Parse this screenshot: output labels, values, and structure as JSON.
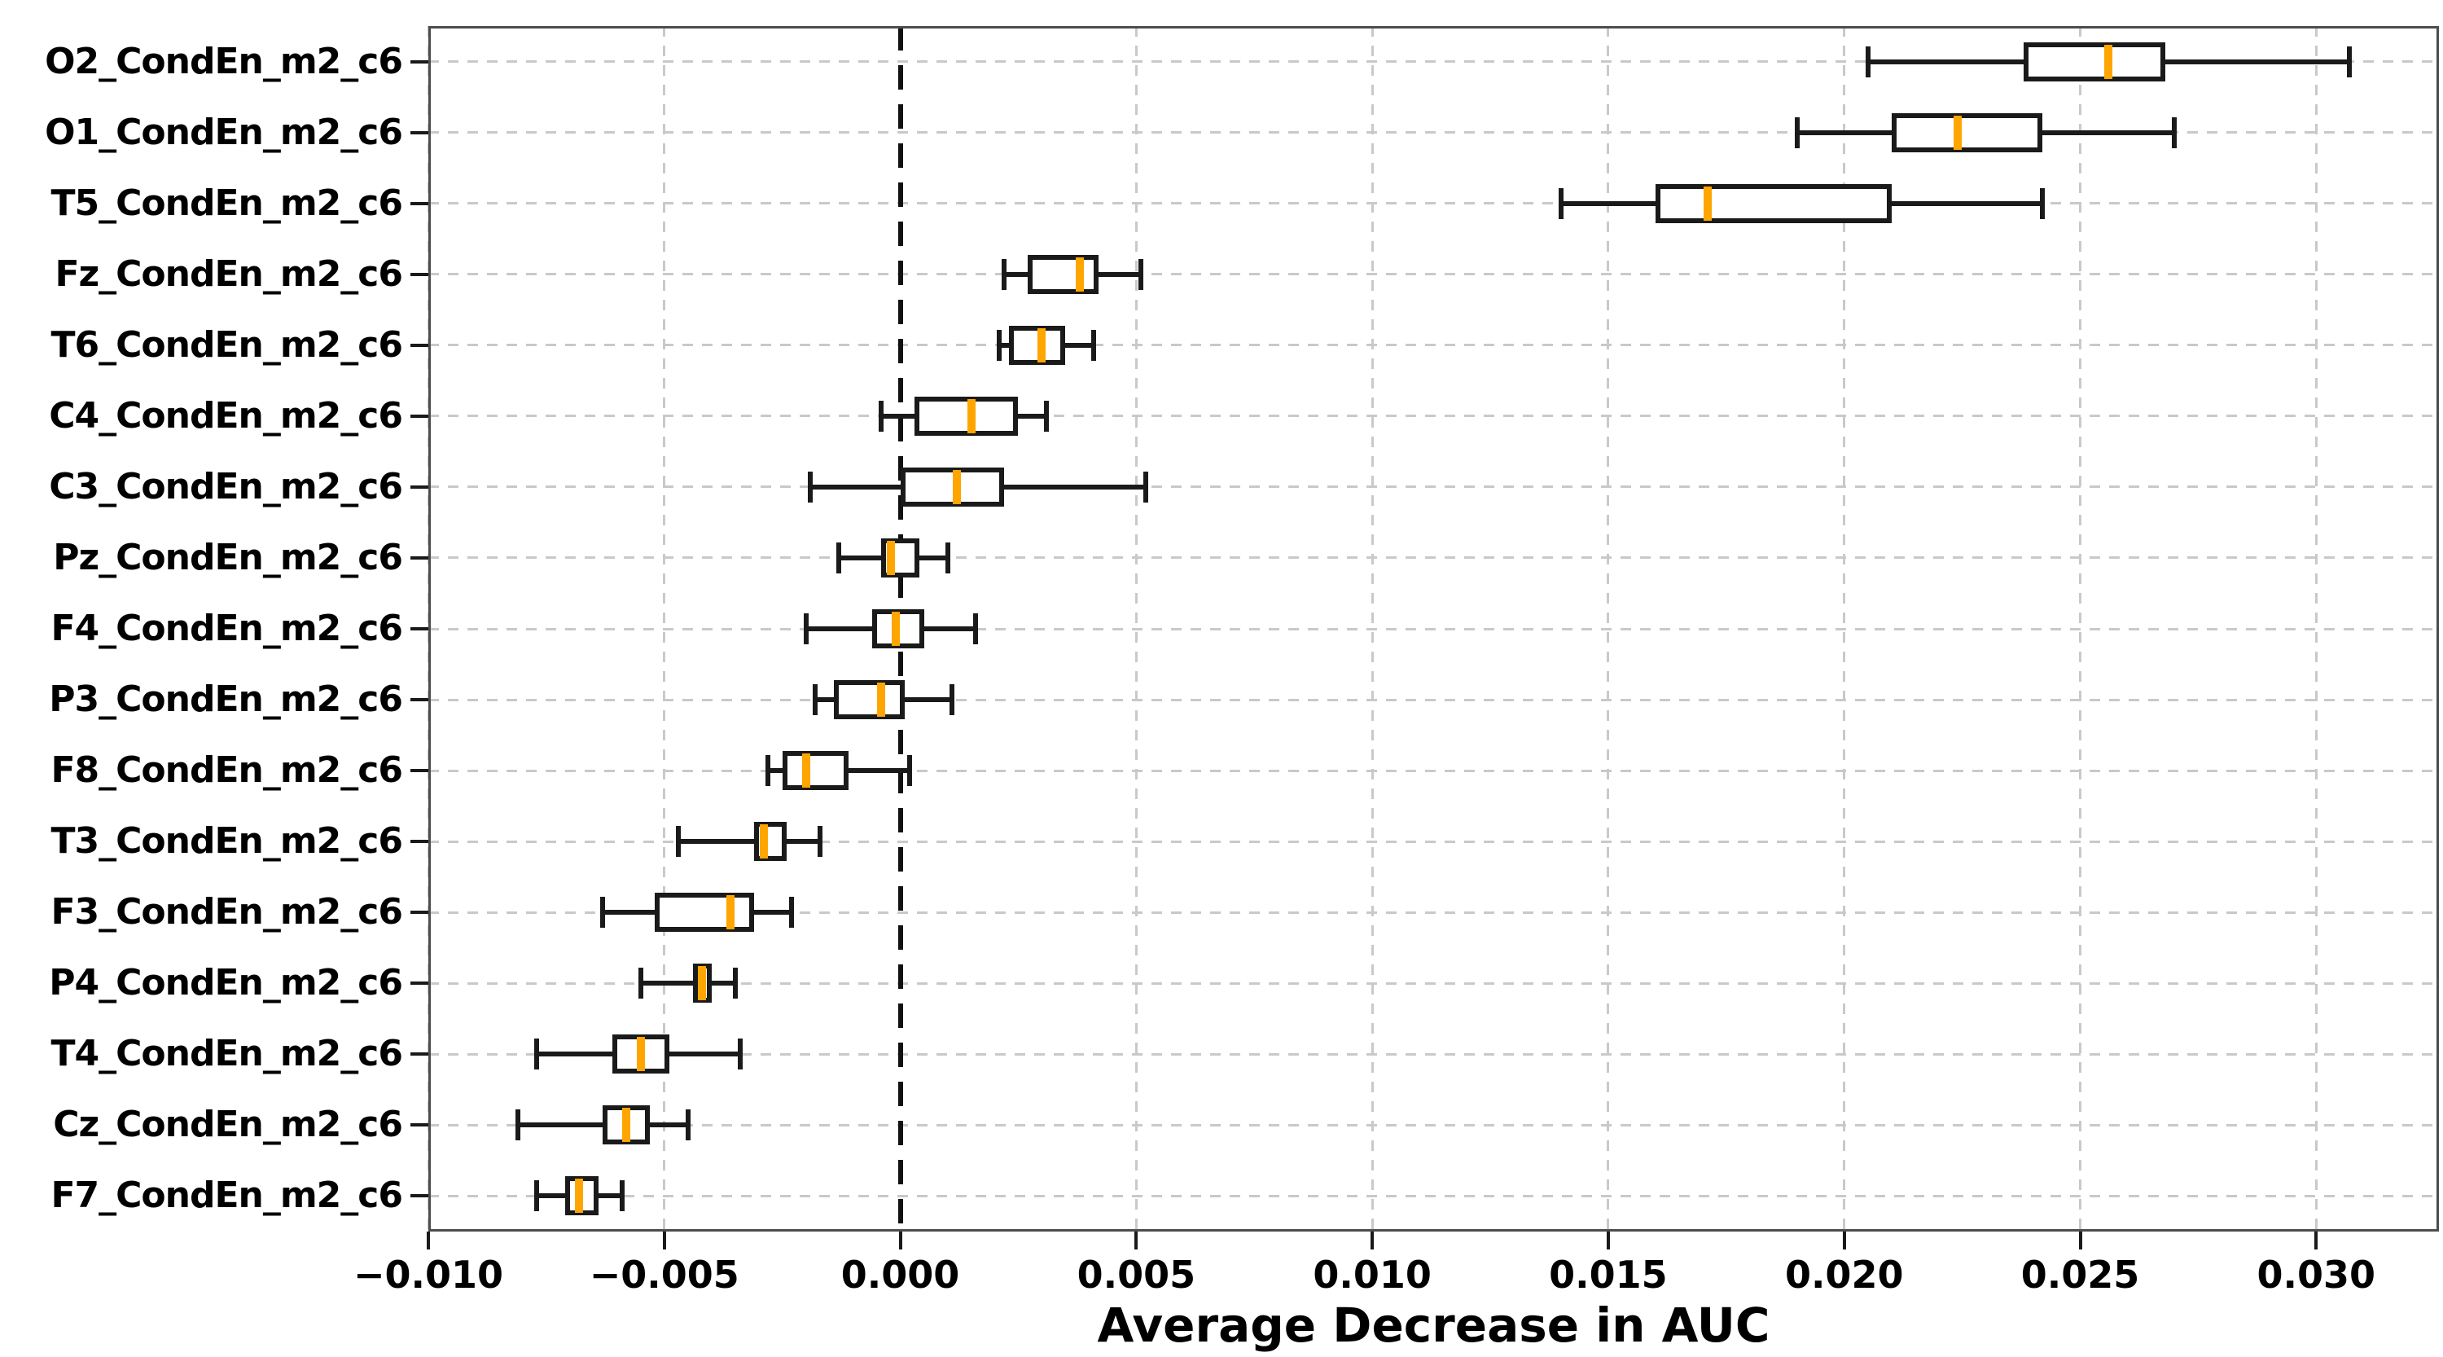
{
  "chart_data": {
    "type": "boxplot",
    "orientation": "horizontal",
    "title": "",
    "xlabel": "Average Decrease in AUC",
    "ylabel": "",
    "xlim": [
      -0.01,
      0.0326
    ],
    "grid": "dashed-both-axes",
    "zero_reference_line": 0.0,
    "colors": {
      "median": "#FFA500",
      "box_edge": "#1a1a1a",
      "gridline": "#c9c9c9",
      "frame": "#4d4d4d",
      "zero_line": "#111111",
      "background": "#ffffff"
    },
    "xticks": [
      -0.01,
      -0.005,
      0.0,
      0.005,
      0.01,
      0.015,
      0.02,
      0.025,
      0.03
    ],
    "xtick_labels": [
      "−0.010",
      "−0.005",
      "0.000",
      "0.005",
      "0.010",
      "0.015",
      "0.020",
      "0.025",
      "0.030"
    ],
    "categories": [
      "O2_CondEn_m2_c6",
      "O1_CondEn_m2_c6",
      "T5_CondEn_m2_c6",
      "Fz_CondEn_m2_c6",
      "T6_CondEn_m2_c6",
      "C4_CondEn_m2_c6",
      "C3_CondEn_m2_c6",
      "Pz_CondEn_m2_c6",
      "F4_CondEn_m2_c6",
      "P3_CondEn_m2_c6",
      "F8_CondEn_m2_c6",
      "T3_CondEn_m2_c6",
      "F3_CondEn_m2_c6",
      "P4_CondEn_m2_c6",
      "T4_CondEn_m2_c6",
      "Cz_CondEn_m2_c6",
      "F7_CondEn_m2_c6"
    ],
    "boxes": [
      {
        "label": "O2_CondEn_m2_c6",
        "whislo": 0.0205,
        "q1": 0.0238,
        "med": 0.0256,
        "q3": 0.0268,
        "whishi": 0.0307
      },
      {
        "label": "O1_CondEn_m2_c6",
        "whislo": 0.019,
        "q1": 0.021,
        "med": 0.0224,
        "q3": 0.0242,
        "whishi": 0.027
      },
      {
        "label": "T5_CondEn_m2_c6",
        "whislo": 0.014,
        "q1": 0.016,
        "med": 0.0171,
        "q3": 0.021,
        "whishi": 0.0242
      },
      {
        "label": "Fz_CondEn_m2_c6",
        "whislo": 0.0022,
        "q1": 0.0027,
        "med": 0.0038,
        "q3": 0.0042,
        "whishi": 0.0051
      },
      {
        "label": "T6_CondEn_m2_c6",
        "whislo": 0.0021,
        "q1": 0.0023,
        "med": 0.003,
        "q3": 0.0035,
        "whishi": 0.0041
      },
      {
        "label": "C4_CondEn_m2_c6",
        "whislo": -0.0004,
        "q1": 0.0003,
        "med": 0.0015,
        "q3": 0.0025,
        "whishi": 0.0031
      },
      {
        "label": "C3_CondEn_m2_c6",
        "whislo": -0.0019,
        "q1": 0.0,
        "med": 0.0012,
        "q3": 0.0022,
        "whishi": 0.0052
      },
      {
        "label": "Pz_CondEn_m2_c6",
        "whislo": -0.0013,
        "q1": -0.0004,
        "med": -0.0002,
        "q3": 0.0004,
        "whishi": 0.001
      },
      {
        "label": "F4_CondEn_m2_c6",
        "whislo": -0.002,
        "q1": -0.0006,
        "med": -0.0001,
        "q3": 0.0005,
        "whishi": 0.0016
      },
      {
        "label": "P3_CondEn_m2_c6",
        "whislo": -0.0018,
        "q1": -0.0014,
        "med": -0.0004,
        "q3": 0.0001,
        "whishi": 0.0011
      },
      {
        "label": "F8_CondEn_m2_c6",
        "whislo": -0.0028,
        "q1": -0.0025,
        "med": -0.002,
        "q3": -0.0011,
        "whishi": 0.0002
      },
      {
        "label": "T3_CondEn_m2_c6",
        "whislo": -0.0047,
        "q1": -0.0031,
        "med": -0.0029,
        "q3": -0.0024,
        "whishi": -0.0017
      },
      {
        "label": "F3_CondEn_m2_c6",
        "whislo": -0.0063,
        "q1": -0.0052,
        "med": -0.0036,
        "q3": -0.0031,
        "whishi": -0.0023
      },
      {
        "label": "P4_CondEn_m2_c6",
        "whislo": -0.0055,
        "q1": -0.0044,
        "med": -0.0042,
        "q3": -0.004,
        "whishi": -0.0035
      },
      {
        "label": "T4_CondEn_m2_c6",
        "whislo": -0.0077,
        "q1": -0.0061,
        "med": -0.0055,
        "q3": -0.0049,
        "whishi": -0.0034
      },
      {
        "label": "Cz_CondEn_m2_c6",
        "whislo": -0.0081,
        "q1": -0.0063,
        "med": -0.0058,
        "q3": -0.0053,
        "whishi": -0.0045
      },
      {
        "label": "F7_CondEn_m2_c6",
        "whislo": -0.0077,
        "q1": -0.0071,
        "med": -0.0068,
        "q3": -0.0064,
        "whishi": -0.0059
      }
    ]
  }
}
